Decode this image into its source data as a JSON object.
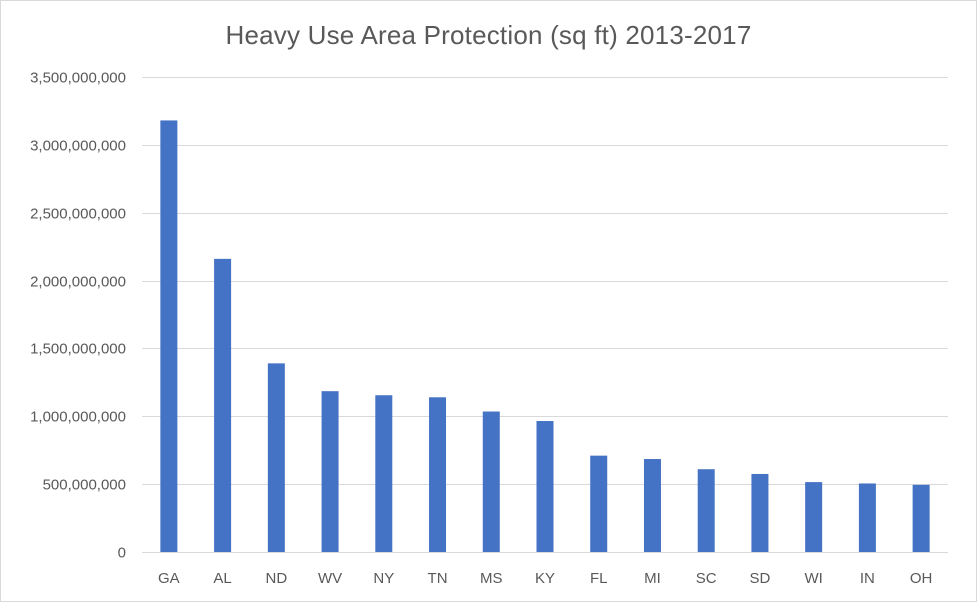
{
  "chart_data": {
    "type": "bar",
    "title": "Heavy Use Area Protection (sq ft) 2013-2017",
    "xlabel": "",
    "ylabel": "",
    "categories": [
      "GA",
      "AL",
      "ND",
      "WV",
      "NY",
      "TN",
      "MS",
      "KY",
      "FL",
      "MI",
      "SC",
      "SD",
      "WI",
      "IN",
      "OH"
    ],
    "values": [
      3180000000,
      2160000000,
      1390000000,
      1185000000,
      1155000000,
      1140000000,
      1035000000,
      965000000,
      710000000,
      685000000,
      610000000,
      575000000,
      515000000,
      505000000,
      495000000
    ],
    "ylim": [
      0,
      3500000000
    ],
    "yticks": [
      0,
      500000000,
      1000000000,
      1500000000,
      2000000000,
      2500000000,
      3000000000,
      3500000000
    ],
    "ytick_labels": [
      "0",
      "500,000,000",
      "1,000,000,000",
      "1,500,000,000",
      "2,000,000,000",
      "2,500,000,000",
      "3,000,000,000",
      "3,500,000,000"
    ],
    "grid": true,
    "legend": "none",
    "bar_color": "#4472c4",
    "grid_color": "#d9d9d9",
    "text_color": "#595959"
  }
}
